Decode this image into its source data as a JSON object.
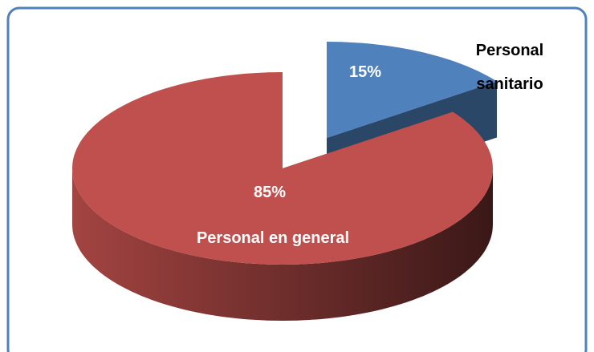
{
  "chart_data": {
    "type": "pie",
    "categories": [
      "Personal sanitario",
      "Personal en general"
    ],
    "values": [
      15,
      85
    ],
    "value_labels": [
      "15%",
      "85%"
    ],
    "colors": [
      "#4f81bd",
      "#c0504d"
    ]
  }
}
